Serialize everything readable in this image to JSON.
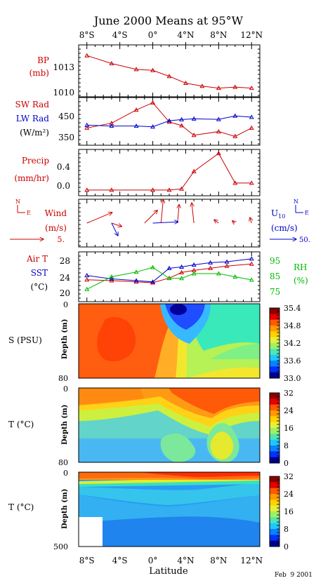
{
  "title": "June 2000 Means at 95°W",
  "footer_date": "Feb  9 2001",
  "x_axis": {
    "label": "Latitude",
    "ticks": [
      {
        "lat": -8,
        "label": "8°S"
      },
      {
        "lat": -4,
        "label": "4°S"
      },
      {
        "lat": 0,
        "label": "0°"
      },
      {
        "lat": 4,
        "label": "4°N"
      },
      {
        "lat": 8,
        "label": "8°N"
      },
      {
        "lat": 12,
        "label": "12°N"
      }
    ],
    "range": [
      -9,
      13
    ]
  },
  "colors": {
    "red": "#cc0000",
    "blue": "#0000cc",
    "green": "#00bb00",
    "black": "#000000"
  },
  "panels": {
    "bp": {
      "label": "BP",
      "unit": "(mb)",
      "yticks": [
        "1013",
        "1010"
      ]
    },
    "rad": {
      "label_sw": "SW Rad",
      "label_lw": "LW Rad",
      "unit": "(W/m²)",
      "yticks": [
        "450",
        "350"
      ]
    },
    "precip": {
      "label": "Precip",
      "unit": "(mm/hr)",
      "yticks": [
        "0.4",
        "0.0"
      ]
    },
    "wind": {
      "label": "Wind",
      "unit": "(m/s)",
      "left_scale": "5.",
      "right_label": "U",
      "right_label_sub": "10",
      "right_unit": "(cm/s)",
      "right_scale": "50.",
      "compass_n": "N",
      "compass_e": "E"
    },
    "temp": {
      "label_air": "Air T",
      "label_sst": "SST",
      "unit": "(°C)",
      "yticks": [
        "28",
        "24",
        "20"
      ],
      "right_label": "RH",
      "right_unit": "(%)",
      "right_ticks": [
        "95",
        "85",
        "75"
      ]
    },
    "salinity": {
      "label": "S (PSU)",
      "depth_label": "Depth (m)",
      "yticks": [
        "0",
        "80"
      ],
      "colorbar_ticks": [
        "35.4",
        "34.8",
        "34.2",
        "33.6",
        "33.0"
      ]
    },
    "t_shallow": {
      "label": "T (°C)",
      "depth_label": "Depth (m)",
      "yticks": [
        "0",
        "80"
      ],
      "colorbar_ticks": [
        "32",
        "24",
        "16",
        "8",
        "0"
      ]
    },
    "t_deep": {
      "label": "T (°C)",
      "depth_label": "Depth (m)",
      "yticks": [
        "0",
        "500"
      ],
      "colorbar_ticks": [
        "32",
        "24",
        "16",
        "8",
        "0"
      ]
    }
  },
  "chart_data": [
    {
      "type": "line",
      "title": "BP",
      "ylabel": "(mb)",
      "ylim": [
        1009.8,
        1014.5
      ],
      "x": [
        -8,
        -5,
        -2,
        0,
        2,
        4,
        6,
        8,
        10,
        12
      ],
      "series": [
        {
          "name": "BP",
          "values": [
            1013.7,
            1012.9,
            1012.3,
            1012.2,
            1011.6,
            1010.9,
            1010.6,
            1010.4,
            1010.5,
            1010.4
          ]
        }
      ]
    },
    {
      "type": "line",
      "title": "SW Rad / LW Rad",
      "ylabel": "(W/m²)",
      "ylim": [
        330,
        505
      ],
      "series": [
        {
          "name": "SW Rad",
          "x": [
            -8,
            -5,
            -2,
            0,
            2,
            3.5,
            5,
            8,
            10,
            12
          ],
          "values": [
            390,
            410,
            465,
            495,
            415,
            400,
            360,
            375,
            355,
            390
          ]
        },
        {
          "name": "LW Rad",
          "x": [
            -8,
            -5,
            -2,
            0,
            2,
            3.5,
            5,
            8,
            10,
            12
          ],
          "values": [
            402,
            398,
            398,
            395,
            420,
            425,
            428,
            426,
            440,
            435
          ]
        }
      ]
    },
    {
      "type": "line",
      "title": "Precip",
      "ylabel": "(mm/hr)",
      "ylim": [
        -0.05,
        0.65
      ],
      "x": [
        -8,
        -5,
        0,
        2,
        3.5,
        5,
        8,
        10,
        12
      ],
      "series": [
        {
          "name": "Precip",
          "values": [
            0.0,
            0.0,
            0.0,
            0.0,
            0.02,
            0.32,
            0.63,
            0.12,
            0.12
          ]
        }
      ]
    },
    {
      "type": "scatter",
      "title": "Wind",
      "ylabel": "(m/s)",
      "series": [
        {
          "name": "Wind",
          "x": [
            -8,
            -5,
            -1,
            1,
            3,
            5,
            8,
            10,
            12
          ],
          "u": [
            4.5,
            1.8,
            2.3,
            0.4,
            0.3,
            -0.4,
            -0.8,
            -0.5,
            -0.3
          ],
          "v": [
            1.9,
            -0.6,
            2.3,
            4.2,
            3.3,
            3.6,
            0.6,
            0.4,
            1.0
          ]
        },
        {
          "name": "U10",
          "x": [
            -5,
            0
          ],
          "u": [
            10,
            40
          ],
          "v": [
            -20,
            2
          ]
        }
      ]
    },
    {
      "type": "line",
      "title": "Air T / SST / RH",
      "ylabel": "(°C)",
      "ylim": [
        19,
        30
      ],
      "series": [
        {
          "name": "Air T",
          "x": [
            -8,
            -5,
            -2,
            0,
            2,
            3.5,
            5,
            7,
            9,
            12
          ],
          "values": [
            23.8,
            23.6,
            23.3,
            23.1,
            24.2,
            25.5,
            26.0,
            26.5,
            27.0,
            27.5
          ]
        },
        {
          "name": "SST",
          "x": [
            -8,
            -5,
            -2,
            0,
            2,
            3.5,
            5,
            7,
            9,
            12
          ],
          "values": [
            24.8,
            24.0,
            23.6,
            23.3,
            26.5,
            26.8,
            27.3,
            27.8,
            28.0,
            28.7
          ]
        },
        {
          "name": "RH",
          "x": [
            -8,
            -5,
            -2,
            0,
            2,
            3.5,
            5,
            8,
            10,
            12
          ],
          "values": [
            77,
            85,
            88,
            91,
            84,
            84,
            87,
            87,
            85,
            83
          ],
          "ylim": [
            70,
            100
          ]
        }
      ]
    },
    {
      "type": "heatmap",
      "title": "S (PSU)",
      "ylabel": "Depth (m)",
      "ylim": [
        0,
        80
      ],
      "zlim": [
        33.0,
        35.4
      ]
    },
    {
      "type": "heatmap",
      "title": "T (°C)",
      "ylabel": "Depth (m)",
      "ylim": [
        0,
        80
      ],
      "zlim": [
        0,
        32
      ]
    },
    {
      "type": "heatmap",
      "title": "T (°C)",
      "ylabel": "Depth (m)",
      "ylim": [
        0,
        500
      ],
      "zlim": [
        0,
        32
      ]
    }
  ]
}
